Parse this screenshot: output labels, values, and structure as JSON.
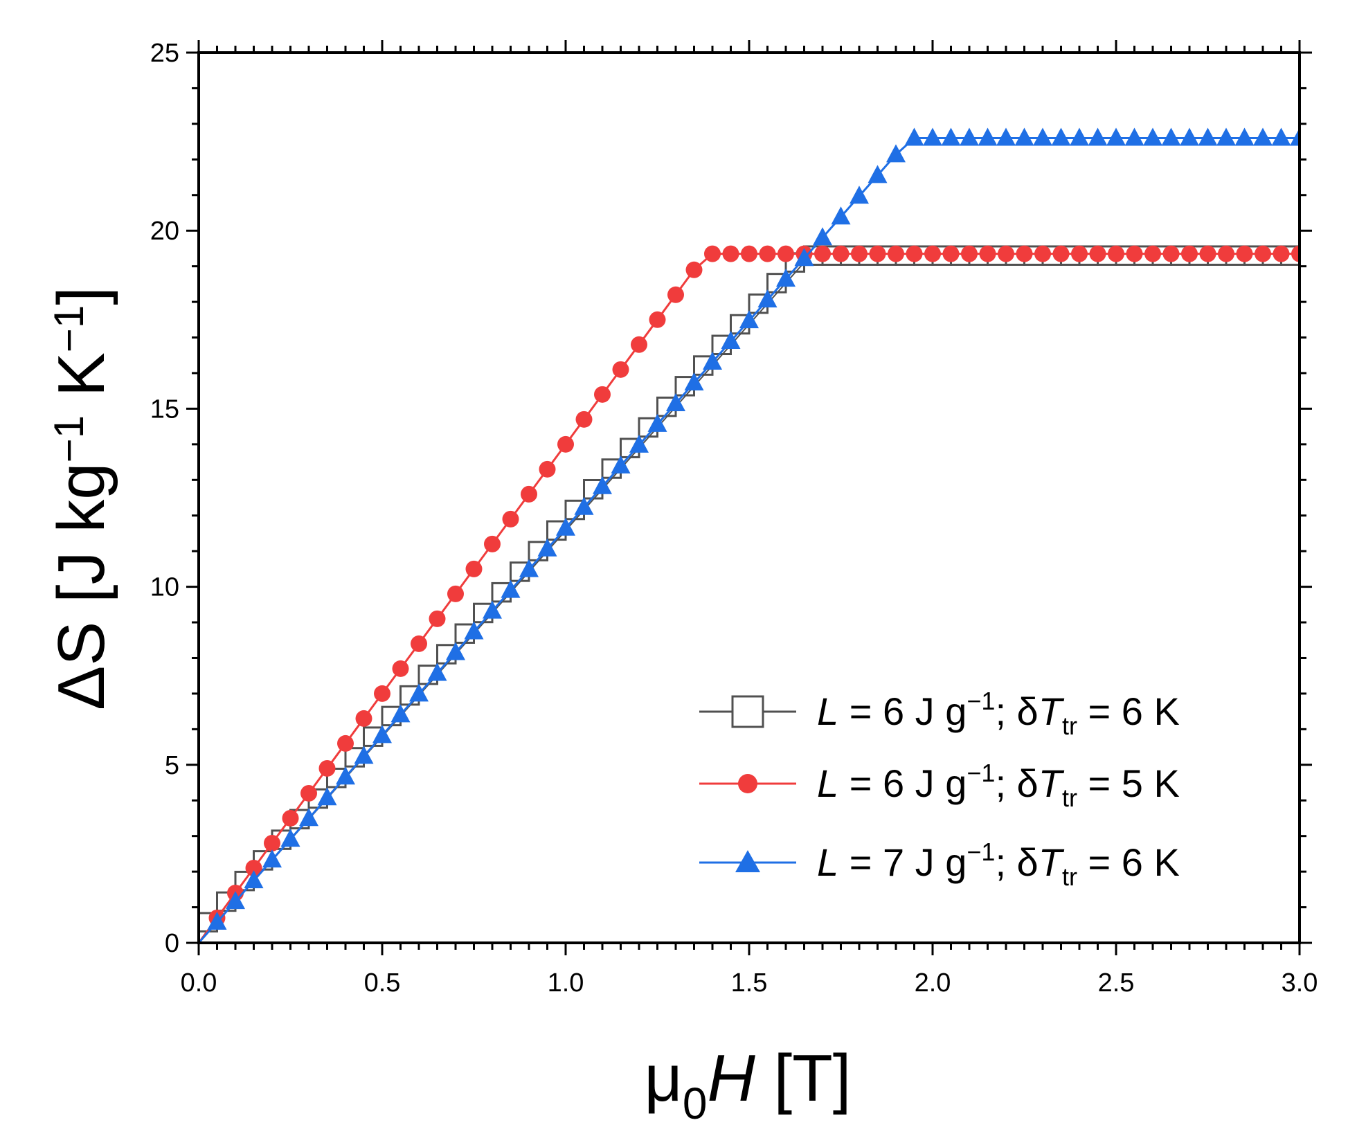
{
  "chart_data": {
    "type": "line",
    "title": "",
    "xlabel": {
      "symbol": "μ",
      "subscript": "0",
      "variable": "H",
      "unit": "[T]"
    },
    "ylabel": {
      "prefix": "Δ",
      "variable": "S",
      "unit_open": "[J kg",
      "exp1": "−1",
      "unit_mid": " K",
      "exp2": "−1",
      "unit_close": "]"
    },
    "xlim": [
      0,
      3.0
    ],
    "ylim": [
      0,
      25
    ],
    "x_ticks": [
      "0.0",
      "0.5",
      "1.0",
      "1.5",
      "2.0",
      "2.5",
      "3.0"
    ],
    "y_ticks": [
      "0",
      "5",
      "10",
      "15",
      "20",
      "25"
    ],
    "grid": false,
    "legend_position": "bottom-right",
    "series": [
      {
        "name": "L = 6 J g−1; δTtr = 6 K",
        "legend": {
          "L": "L",
          "value": " = 6 J g",
          "exp": "−1",
          "sep": "; δ",
          "T": "T",
          "sub": "tr",
          "tail": " = 6 K"
        },
        "color": "#505050",
        "marker": "open-square",
        "step": 0.05,
        "x_end": 3.0,
        "y_start": 0,
        "slope": 11.58,
        "y_max": 19.3
      },
      {
        "name": "L = 6 J g−1; δTtr = 5 K",
        "legend": {
          "L": "L",
          "value": " = 6 J g",
          "exp": "−1",
          "sep": "; δ",
          "T": "T",
          "sub": "tr",
          "tail": " = 5 K"
        },
        "color": "#f03c3c",
        "marker": "filled-circle",
        "step": 0.05,
        "x_end": 3.0,
        "y_start": 0,
        "slope": 14.0,
        "y_max": 19.35
      },
      {
        "name": "L = 7 J g−1; δTtr = 6 K",
        "legend": {
          "L": "L",
          "value": " = 7 J g",
          "exp": "−1",
          "sep": "; δ",
          "T": "T",
          "sub": "tr",
          "tail": " = 6 K"
        },
        "color": "#1f6fe5",
        "marker": "filled-triangle",
        "step": 0.05,
        "x_end": 3.0,
        "y_start": 0,
        "slope": 11.65,
        "y_max": 22.6
      }
    ]
  }
}
